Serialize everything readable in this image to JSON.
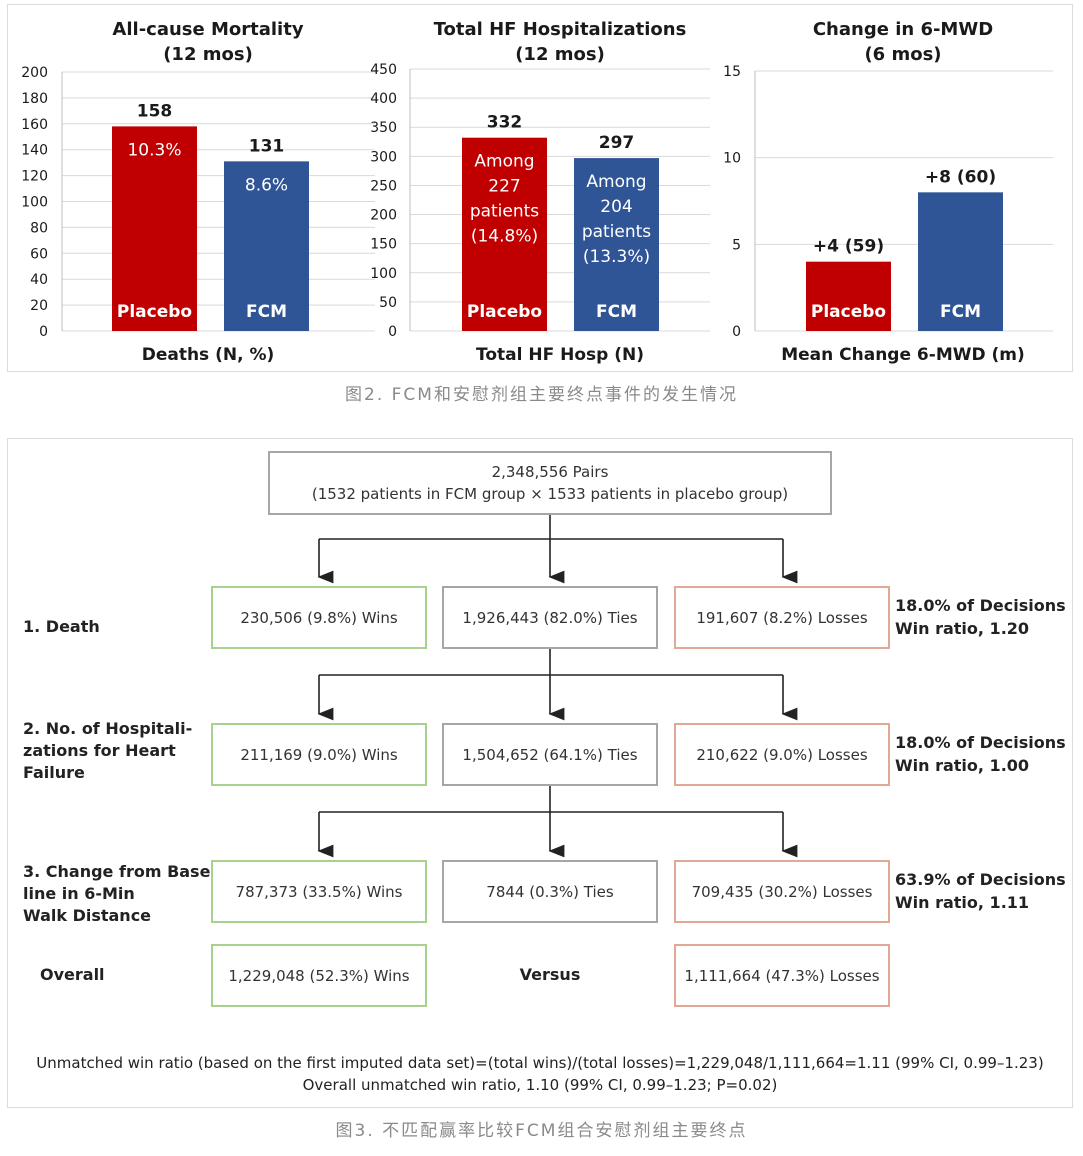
{
  "figure2": {
    "caption": "图2. FCM和安慰剂组主要终点事件的发生情况",
    "charts": [
      {
        "title_line1": "All-cause Mortality",
        "title_line2": "(12 mos)",
        "xlabel": "Deaths (N, %)",
        "ylim": [
          0,
          200
        ],
        "yticks": [
          "0",
          "20",
          "40",
          "60",
          "80",
          "100",
          "120",
          "140",
          "160",
          "180",
          "200"
        ],
        "values": [
          158,
          131
        ],
        "value_labels": [
          "158",
          "131"
        ],
        "inner_labels": [
          [
            "10.3%"
          ],
          [
            "8.6%"
          ]
        ],
        "categories": [
          "Placebo",
          "FCM"
        ]
      },
      {
        "title_line1": "Total HF Hospitalizations",
        "title_line2": "(12 mos)",
        "xlabel": "Total HF Hosp (N)",
        "ylim": [
          0,
          450
        ],
        "yticks": [
          "0",
          "50",
          "100",
          "150",
          "200",
          "250",
          "300",
          "350",
          "400",
          "450"
        ],
        "values": [
          332,
          297
        ],
        "value_labels": [
          "332",
          "297"
        ],
        "inner_labels": [
          [
            "Among",
            "227",
            "patients",
            "(14.8%)"
          ],
          [
            "Among",
            "204",
            "patients",
            "(13.3%)"
          ]
        ],
        "categories": [
          "Placebo",
          "FCM"
        ]
      },
      {
        "title_line1": "Change in 6-MWD",
        "title_line2": "(6 mos)",
        "xlabel": "Mean Change 6-MWD (m)",
        "ylim": [
          0,
          15
        ],
        "yticks": [
          "0",
          "5",
          "10",
          "15"
        ],
        "values": [
          4,
          8
        ],
        "value_labels": [
          "+4 (59)",
          "+8 (60)"
        ],
        "inner_labels": [
          [],
          []
        ],
        "categories": [
          "Placebo",
          "FCM"
        ]
      }
    ],
    "colors": {
      "placebo": "#c00000",
      "fcm": "#2f5597"
    }
  },
  "chart_data": [
    {
      "type": "bar",
      "title": "All-cause Mortality (12 mos)",
      "xlabel": "Deaths (N, %)",
      "ylabel": "",
      "categories": [
        "Placebo",
        "FCM"
      ],
      "values": [
        158,
        131
      ],
      "ylim": [
        0,
        200
      ]
    },
    {
      "type": "bar",
      "title": "Total HF Hospitalizations (12 mos)",
      "xlabel": "Total HF Hosp (N)",
      "ylabel": "",
      "categories": [
        "Placebo",
        "FCM"
      ],
      "values": [
        332,
        297
      ],
      "ylim": [
        0,
        450
      ]
    },
    {
      "type": "bar",
      "title": "Change in 6-MWD (6 mos)",
      "xlabel": "Mean Change 6-MWD (m)",
      "ylabel": "",
      "categories": [
        "Placebo",
        "FCM"
      ],
      "values": [
        4,
        8
      ],
      "ylim": [
        0,
        15
      ]
    }
  ],
  "figure3": {
    "caption": "图3. 不匹配赢率比较FCM组合安慰剂组主要终点",
    "top_box": {
      "line1": "2,348,556 Pairs",
      "line2": "(1532 patients in FCM group × 1533 patients in placebo group)"
    },
    "levels": [
      {
        "label": "1. Death",
        "wins": "230,506 (9.8%) Wins",
        "ties": "1,926,443 (82.0%) Ties",
        "losses": "191,607 (8.2%) Losses",
        "decisions": "18.0% of Decisions",
        "win_ratio": "Win ratio, 1.20"
      },
      {
        "label": "2. No. of Hospitali-\nzations for Heart\nFailure",
        "wins": "211,169 (9.0%) Wins",
        "ties": "1,504,652 (64.1%) Ties",
        "losses": "210,622 (9.0%) Losses",
        "decisions": "18.0% of Decisions",
        "win_ratio": "Win ratio, 1.00"
      },
      {
        "label": "3. Change from Base-\nline in 6-Min\nWalk Distance",
        "wins": "787,373 (33.5%) Wins",
        "ties": "7844 (0.3%) Ties",
        "losses": "709,435 (30.2%) Losses",
        "decisions": "63.9% of Decisions",
        "win_ratio": "Win ratio, 1.11"
      }
    ],
    "overall": {
      "label": "Overall",
      "wins": "1,229,048 (52.3%) Wins",
      "versus": "Versus",
      "losses": "1,111,664 (47.3%) Losses"
    },
    "footer_line1": "Unmatched win ratio (based on the first imputed data set)=(total wins)/(total losses)=1,229,048/1,111,664=1.11 (99% CI, 0.99–1.23)",
    "footer_line2": "Overall unmatched win ratio, 1.10 (99% CI, 0.99–1.23; P=0.02)"
  }
}
